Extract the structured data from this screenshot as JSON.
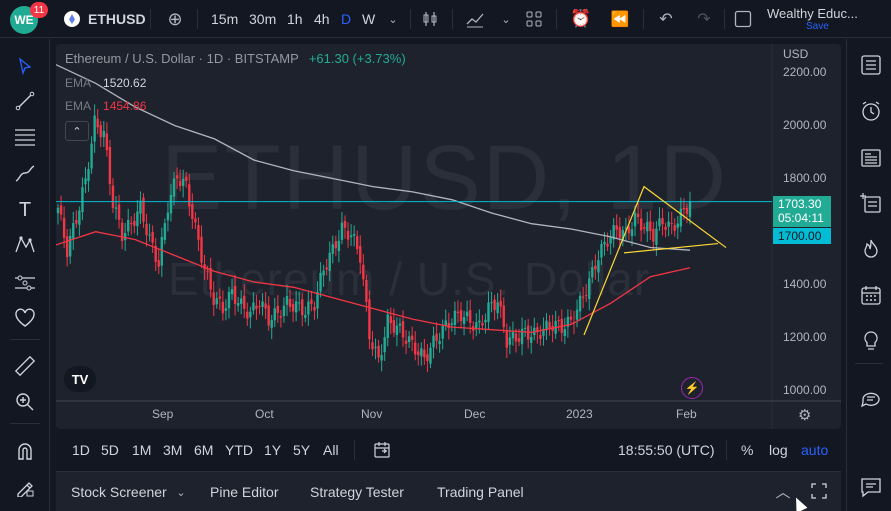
{
  "app": {
    "badge_count": "11",
    "logo_text": "WE"
  },
  "header": {
    "symbol": "ETHUSD",
    "timeframes": [
      "15m",
      "30m",
      "1h",
      "4h",
      "D",
      "W"
    ],
    "active_timeframe": "D",
    "account_name": "Wealthy Educ...",
    "save_label": "Save",
    "icons": [
      "add-symbol-icon",
      "candles-icon",
      "indicators-icon",
      "templates-icon",
      "alert-icon",
      "replay-icon",
      "undo-icon",
      "redo-icon",
      "fullscreen-icon"
    ]
  },
  "left_toolbar": [
    "cursor-icon",
    "trend-line-icon",
    "fib-icon",
    "brush-icon",
    "text-icon",
    "pattern-icon",
    "forecast-icon",
    "heart-icon",
    "ruler-icon",
    "zoom-icon",
    "magnet-icon",
    "lock-draw-icon"
  ],
  "chart": {
    "legend": {
      "title": "Ethereum / U.S. Dollar · 1D · BITSTAMP",
      "change": "+61.30 (+3.73%)"
    },
    "ema_rows": [
      {
        "label": "EMA",
        "value": "1520.62"
      },
      {
        "label": "EMA",
        "value": "1454.86"
      }
    ],
    "watermark_symbol": "ETHUSD, 1D",
    "watermark_name": "Ethereum / U.S. Dollar",
    "currency": "USD",
    "price_ticks": [
      "2200.00",
      "2000.00",
      "1800.00",
      "1400.00",
      "1200.00",
      "1000.00"
    ],
    "date_ticks": [
      "Sep",
      "Oct",
      "Nov",
      "Dec",
      "2023",
      "Feb"
    ],
    "last_price": "1703.30",
    "countdown": "05:04:11",
    "ema_label_price": "1700.00",
    "colors": {
      "up": "#22ab94",
      "down": "#f23645",
      "ema_fast": "#b2b5be",
      "ema_slow": "#f23645",
      "price_line": "#00bcd4",
      "pattern": "#fdd835"
    }
  },
  "chart_data": {
    "type": "candlestick",
    "symbol": "ETHUSD",
    "interval": "1D",
    "exchange": "BITSTAMP",
    "ylim": [
      950,
      2250
    ],
    "y_ticks": [
      1000,
      1200,
      1400,
      1800,
      2000,
      2200
    ],
    "x_ticks": [
      "Sep",
      "Oct",
      "Nov",
      "Dec",
      "2023",
      "Feb"
    ],
    "close_path": [
      1680,
      1520,
      1640,
      1780,
      2000,
      1960,
      1700,
      1580,
      1620,
      1680,
      1560,
      1470,
      1690,
      1800,
      1760,
      1600,
      1450,
      1340,
      1300,
      1360,
      1310,
      1280,
      1330,
      1260,
      1280,
      1320,
      1310,
      1290,
      1320,
      1450,
      1520,
      1600,
      1580,
      1500,
      1200,
      1100,
      1250,
      1230,
      1190,
      1150,
      1110,
      1170,
      1220,
      1260,
      1280,
      1250,
      1230,
      1300,
      1330,
      1180,
      1190,
      1210,
      1200,
      1220,
      1240,
      1230,
      1250,
      1320,
      1400,
      1500,
      1560,
      1600,
      1580,
      1640,
      1610,
      1580,
      1630,
      1600,
      1650,
      1703
    ],
    "ema_fast": [
      2220,
      2150,
      2060,
      1990,
      1940,
      1860,
      1820,
      1790,
      1760,
      1740,
      1710,
      1660,
      1620,
      1600,
      1570,
      1530,
      1520
    ],
    "ema_slow": [
      1540,
      1590,
      1560,
      1500,
      1440,
      1400,
      1380,
      1340,
      1300,
      1260,
      1230,
      1220,
      1210,
      1240,
      1320,
      1420,
      1454
    ]
  },
  "range_bar": {
    "ranges": [
      "1D",
      "5D",
      "1M",
      "3M",
      "6M",
      "YTD",
      "1Y",
      "5Y",
      "All"
    ],
    "clock": "18:55:50 (UTC)",
    "percent": "%",
    "log": "log",
    "auto": "auto"
  },
  "bottom_panel": {
    "tabs": [
      "Stock Screener",
      "Pine Editor",
      "Strategy Tester",
      "Trading Panel"
    ]
  },
  "right_sidebar": [
    "watchlist-icon",
    "alerts-clock-icon",
    "news-icon",
    "object-tree-icon",
    "hotlist-icon",
    "calendar-icon",
    "ideas-icon",
    "streams-icon",
    "chat-icon"
  ]
}
